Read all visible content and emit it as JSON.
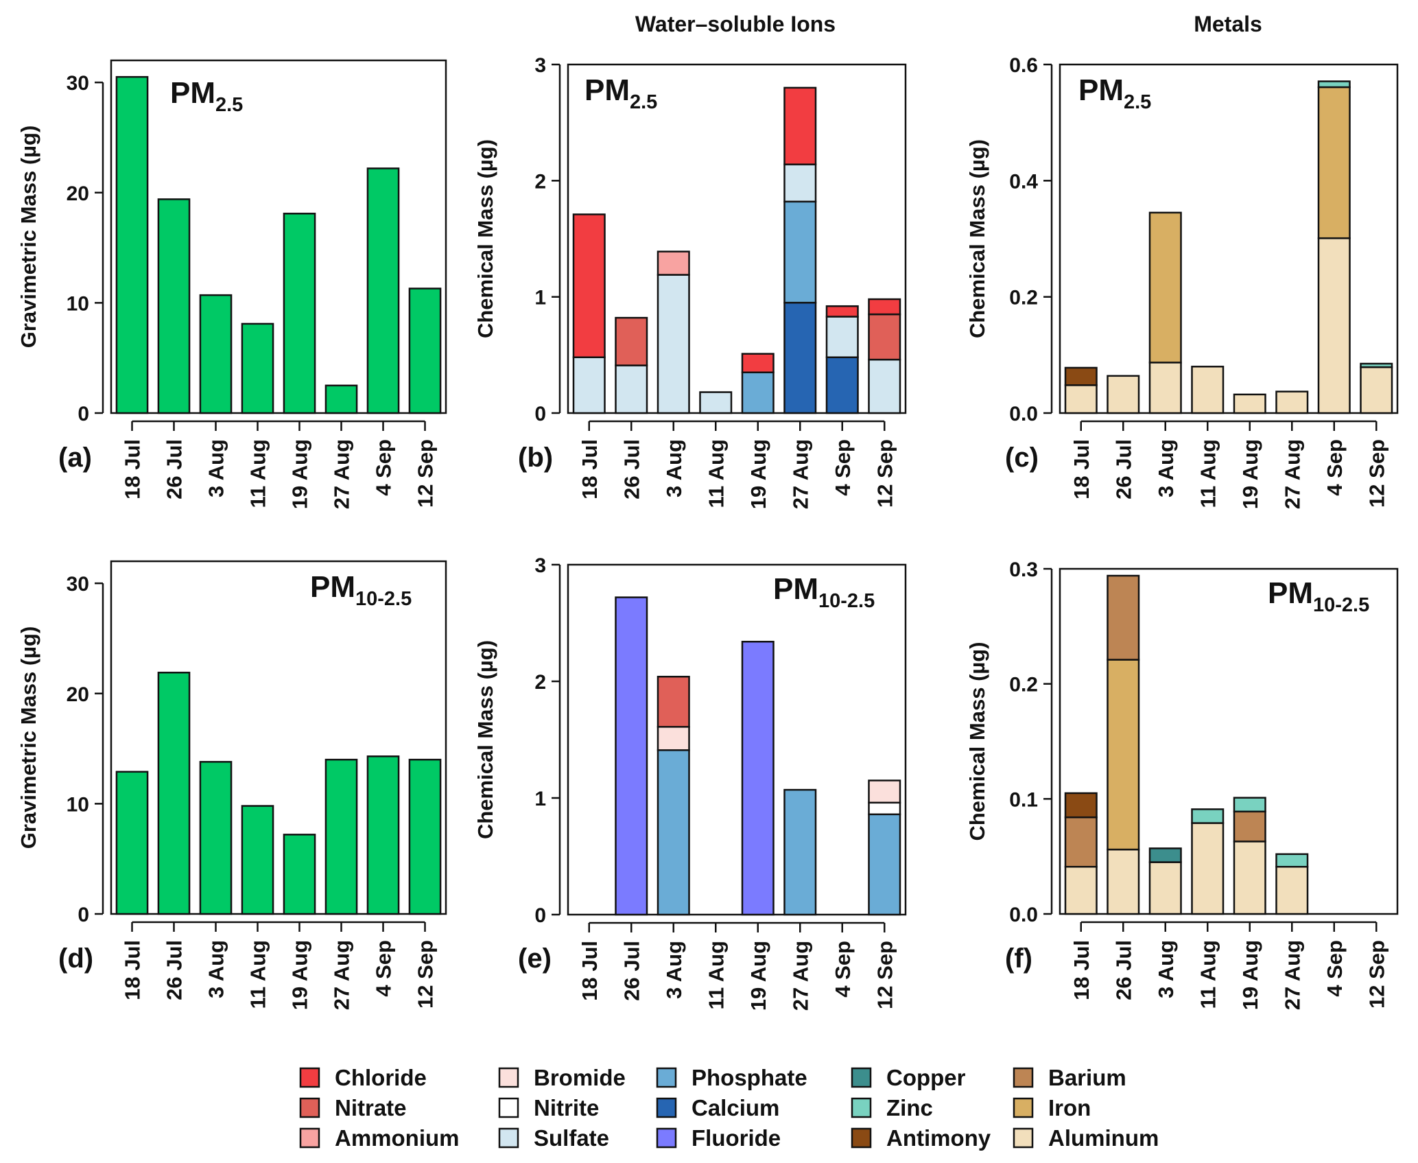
{
  "column_titles": [
    "Water–soluble Ions",
    "Metals"
  ],
  "categories": [
    "18 Jul",
    "26 Jul",
    "3 Aug",
    "11 Aug",
    "19 Aug",
    "27 Aug",
    "4 Sep",
    "12 Sep"
  ],
  "legend": [
    {
      "name": "Chloride",
      "color": "#f23d41"
    },
    {
      "name": "Nitrate",
      "color": "#e06058"
    },
    {
      "name": "Ammonium",
      "color": "#f8a3a1"
    },
    {
      "name": "Bromide",
      "color": "#fbe0dc"
    },
    {
      "name": "Nitrite",
      "color": "#ffffff"
    },
    {
      "name": "Sulfate",
      "color": "#d2e6f0"
    },
    {
      "name": "Phosphate",
      "color": "#6aacd6"
    },
    {
      "name": "Calcium",
      "color": "#2665b2"
    },
    {
      "name": "Fluoride",
      "color": "#7b7bff"
    },
    {
      "name": "Copper",
      "color": "#3c8e8d"
    },
    {
      "name": "Zinc",
      "color": "#79d2c0"
    },
    {
      "name": "Antimony",
      "color": "#8a4a14"
    },
    {
      "name": "Barium",
      "color": "#bd8554"
    },
    {
      "name": "Iron",
      "color": "#d8af63"
    },
    {
      "name": "Aluminum",
      "color": "#f2dfbc"
    }
  ],
  "chart_data": [
    {
      "id": "a",
      "panel_label": "(a)",
      "type": "bar",
      "title": "PM",
      "title_sub": "2.5",
      "ylabel": "Gravimetric Mass (µg)",
      "ylim": [
        0,
        32
      ],
      "yticks": [
        0,
        10,
        20,
        30
      ],
      "ytick_labels": [
        "0",
        "10",
        "20",
        "30"
      ],
      "bar_color": "#00c965",
      "categories": [
        "18 Jul",
        "26 Jul",
        "3 Aug",
        "11 Aug",
        "19 Aug",
        "27 Aug",
        "4 Sep",
        "12 Sep"
      ],
      "values": [
        30.5,
        19.4,
        10.7,
        8.1,
        18.1,
        2.5,
        22.2,
        11.3
      ]
    },
    {
      "id": "b",
      "panel_label": "(b)",
      "type": "stacked_bar",
      "title": "PM",
      "title_sub": "2.5",
      "ylabel": "Chemical Mass (µg)",
      "ylim": [
        0,
        3
      ],
      "yticks": [
        0,
        1,
        2,
        3
      ],
      "ytick_labels": [
        "0",
        "1",
        "2",
        "3"
      ],
      "categories": [
        "18 Jul",
        "26 Jul",
        "3 Aug",
        "11 Aug",
        "19 Aug",
        "27 Aug",
        "4 Sep",
        "12 Sep"
      ],
      "series": [
        {
          "name": "Calcium",
          "values": [
            0,
            0,
            0,
            0,
            0,
            0.95,
            0.48,
            0
          ]
        },
        {
          "name": "Phosphate",
          "values": [
            0,
            0,
            0,
            0,
            0.35,
            0.87,
            0,
            0
          ]
        },
        {
          "name": "Sulfate",
          "values": [
            0.48,
            0.41,
            1.19,
            0.18,
            0,
            0.32,
            0.35,
            0.46
          ]
        },
        {
          "name": "Ammonium",
          "values": [
            0,
            0,
            0.2,
            0,
            0,
            0,
            0,
            0
          ]
        },
        {
          "name": "Nitrate",
          "values": [
            0,
            0.41,
            0,
            0,
            0,
            0,
            0,
            0.39
          ]
        },
        {
          "name": "Chloride",
          "values": [
            1.23,
            0,
            0,
            0,
            0.16,
            0.66,
            0.09,
            0.13
          ]
        }
      ]
    },
    {
      "id": "c",
      "panel_label": "(c)",
      "type": "stacked_bar",
      "title": "PM",
      "title_sub": "2.5",
      "ylabel": "Chemical Mass (µg)",
      "ylim": [
        0,
        0.6
      ],
      "yticks": [
        0,
        0.2,
        0.4,
        0.6
      ],
      "ytick_labels": [
        "0.0",
        "0.2",
        "0.4",
        "0.6"
      ],
      "categories": [
        "18 Jul",
        "26 Jul",
        "3 Aug",
        "11 Aug",
        "19 Aug",
        "27 Aug",
        "4 Sep",
        "12 Sep"
      ],
      "series": [
        {
          "name": "Aluminum",
          "values": [
            0.048,
            0.064,
            0.087,
            0.08,
            0.032,
            0.037,
            0.301,
            0.079
          ]
        },
        {
          "name": "Iron",
          "values": [
            0,
            0,
            0.258,
            0,
            0,
            0,
            0.26,
            0
          ]
        },
        {
          "name": "Antimony",
          "values": [
            0.03,
            0,
            0,
            0,
            0,
            0,
            0,
            0
          ]
        },
        {
          "name": "Zinc",
          "values": [
            0,
            0,
            0,
            0,
            0,
            0,
            0.01,
            0.006
          ]
        }
      ]
    },
    {
      "id": "d",
      "panel_label": "(d)",
      "type": "bar",
      "title": "PM",
      "title_sub": "10-2.5",
      "ylabel": "Gravimetric Mass (µg)",
      "ylim": [
        0,
        32
      ],
      "yticks": [
        0,
        10,
        20,
        30
      ],
      "ytick_labels": [
        "0",
        "10",
        "20",
        "30"
      ],
      "bar_color": "#00c965",
      "categories": [
        "18 Jul",
        "26 Jul",
        "3 Aug",
        "11 Aug",
        "19 Aug",
        "27 Aug",
        "4 Sep",
        "12 Sep"
      ],
      "values": [
        12.9,
        21.9,
        13.8,
        9.8,
        7.2,
        14.0,
        14.3,
        14.0
      ]
    },
    {
      "id": "e",
      "panel_label": "(e)",
      "type": "stacked_bar",
      "title": "PM",
      "title_sub": "10-2.5",
      "ylabel": "Chemical Mass (µg)",
      "ylim": [
        0,
        3
      ],
      "yticks": [
        0,
        1,
        2,
        3
      ],
      "ytick_labels": [
        "0",
        "1",
        "2",
        "3"
      ],
      "categories": [
        "18 Jul",
        "26 Jul",
        "3 Aug",
        "11 Aug",
        "19 Aug",
        "27 Aug",
        "4 Sep",
        "12 Sep"
      ],
      "series": [
        {
          "name": "Fluoride",
          "values": [
            0,
            2.72,
            0,
            0,
            2.34,
            0,
            0,
            0
          ]
        },
        {
          "name": "Phosphate",
          "values": [
            0,
            0,
            1.41,
            0,
            0,
            1.07,
            0,
            0.86
          ]
        },
        {
          "name": "Nitrite",
          "values": [
            0,
            0,
            0,
            0,
            0,
            0,
            0,
            0.1
          ]
        },
        {
          "name": "Bromide",
          "values": [
            0,
            0,
            0.2,
            0,
            0,
            0,
            0,
            0.19
          ]
        },
        {
          "name": "Nitrate",
          "values": [
            0,
            0,
            0.43,
            0,
            0,
            0,
            0,
            0
          ]
        }
      ]
    },
    {
      "id": "f",
      "panel_label": "(f)",
      "type": "stacked_bar",
      "title": "PM",
      "title_sub": "10-2.5",
      "ylabel": "Chemical Mass (µg)",
      "ylim": [
        0,
        0.3
      ],
      "yticks": [
        0,
        0.1,
        0.2,
        0.3
      ],
      "ytick_labels": [
        "0.0",
        "0.1",
        "0.2",
        "0.3"
      ],
      "categories": [
        "18 Jul",
        "26 Jul",
        "3 Aug",
        "11 Aug",
        "19 Aug",
        "27 Aug",
        "4 Sep",
        "12 Sep"
      ],
      "series": [
        {
          "name": "Aluminum",
          "values": [
            0.041,
            0.056,
            0.045,
            0.079,
            0.063,
            0.041,
            0,
            0
          ]
        },
        {
          "name": "Iron",
          "values": [
            0,
            0.165,
            0,
            0,
            0,
            0,
            0,
            0
          ]
        },
        {
          "name": "Copper",
          "values": [
            0,
            0,
            0.012,
            0,
            0,
            0,
            0,
            0
          ]
        },
        {
          "name": "Barium",
          "values": [
            0.043,
            0.073,
            0,
            0,
            0.026,
            0,
            0,
            0
          ]
        },
        {
          "name": "Zinc",
          "values": [
            0,
            0,
            0,
            0.012,
            0.012,
            0.011,
            0,
            0
          ]
        },
        {
          "name": "Antimony",
          "values": [
            0.021,
            0,
            0,
            0,
            0,
            0,
            0,
            0
          ]
        }
      ]
    }
  ]
}
